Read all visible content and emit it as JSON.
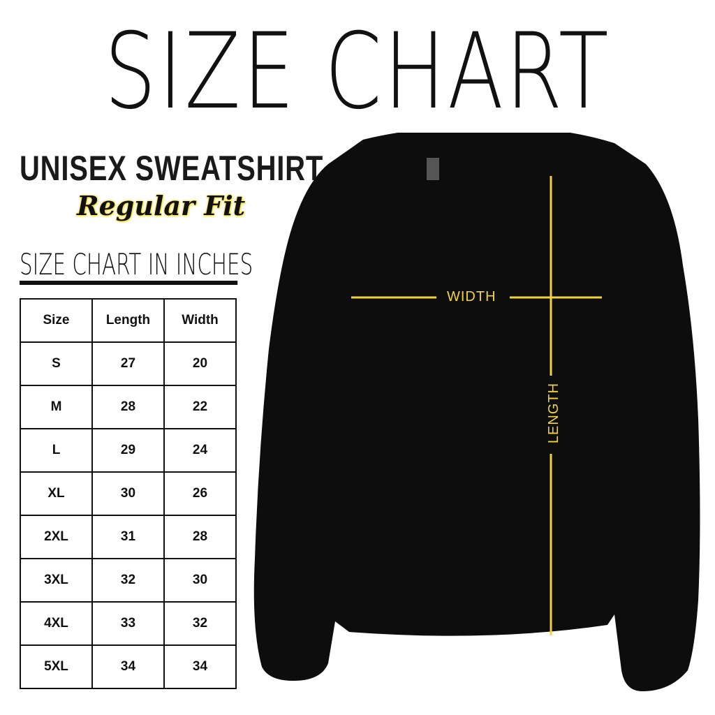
{
  "title": "SIZE CHART",
  "product": "UNISEX SWEATSHIRT",
  "fit": "Regular Fit",
  "table_title": "SIZE CHART IN INCHES",
  "table": {
    "headers": [
      "Size",
      "Length",
      "Width"
    ],
    "rows": [
      [
        "S",
        "27",
        "20"
      ],
      [
        "M",
        "28",
        "22"
      ],
      [
        "L",
        "29",
        "24"
      ],
      [
        "XL",
        "30",
        "26"
      ],
      [
        "2XL",
        "31",
        "28"
      ],
      [
        "3XL",
        "32",
        "30"
      ],
      [
        "4XL",
        "33",
        "32"
      ],
      [
        "5XL",
        "34",
        "34"
      ]
    ]
  },
  "diagram": {
    "width_label": "WIDTH",
    "length_label": "LENGTH",
    "line_color": "#f2d43a",
    "shirt_color": "#0d0d0d"
  }
}
